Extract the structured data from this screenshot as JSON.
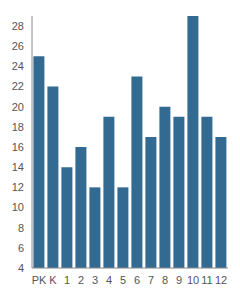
{
  "chart_data": {
    "type": "bar",
    "categories": [
      "PK",
      "K",
      "1",
      "2",
      "3",
      "4",
      "5",
      "6",
      "7",
      "8",
      "9",
      "10",
      "11",
      "12"
    ],
    "values": [
      25,
      22,
      14,
      16,
      12,
      19,
      12,
      23,
      17,
      20,
      19,
      29,
      19,
      17
    ],
    "color": "#336a92",
    "ylim": [
      4,
      29
    ],
    "yticks": [
      4,
      6,
      8,
      10,
      12,
      14,
      16,
      18,
      20,
      22,
      24,
      26,
      28
    ],
    "grid": false
  }
}
